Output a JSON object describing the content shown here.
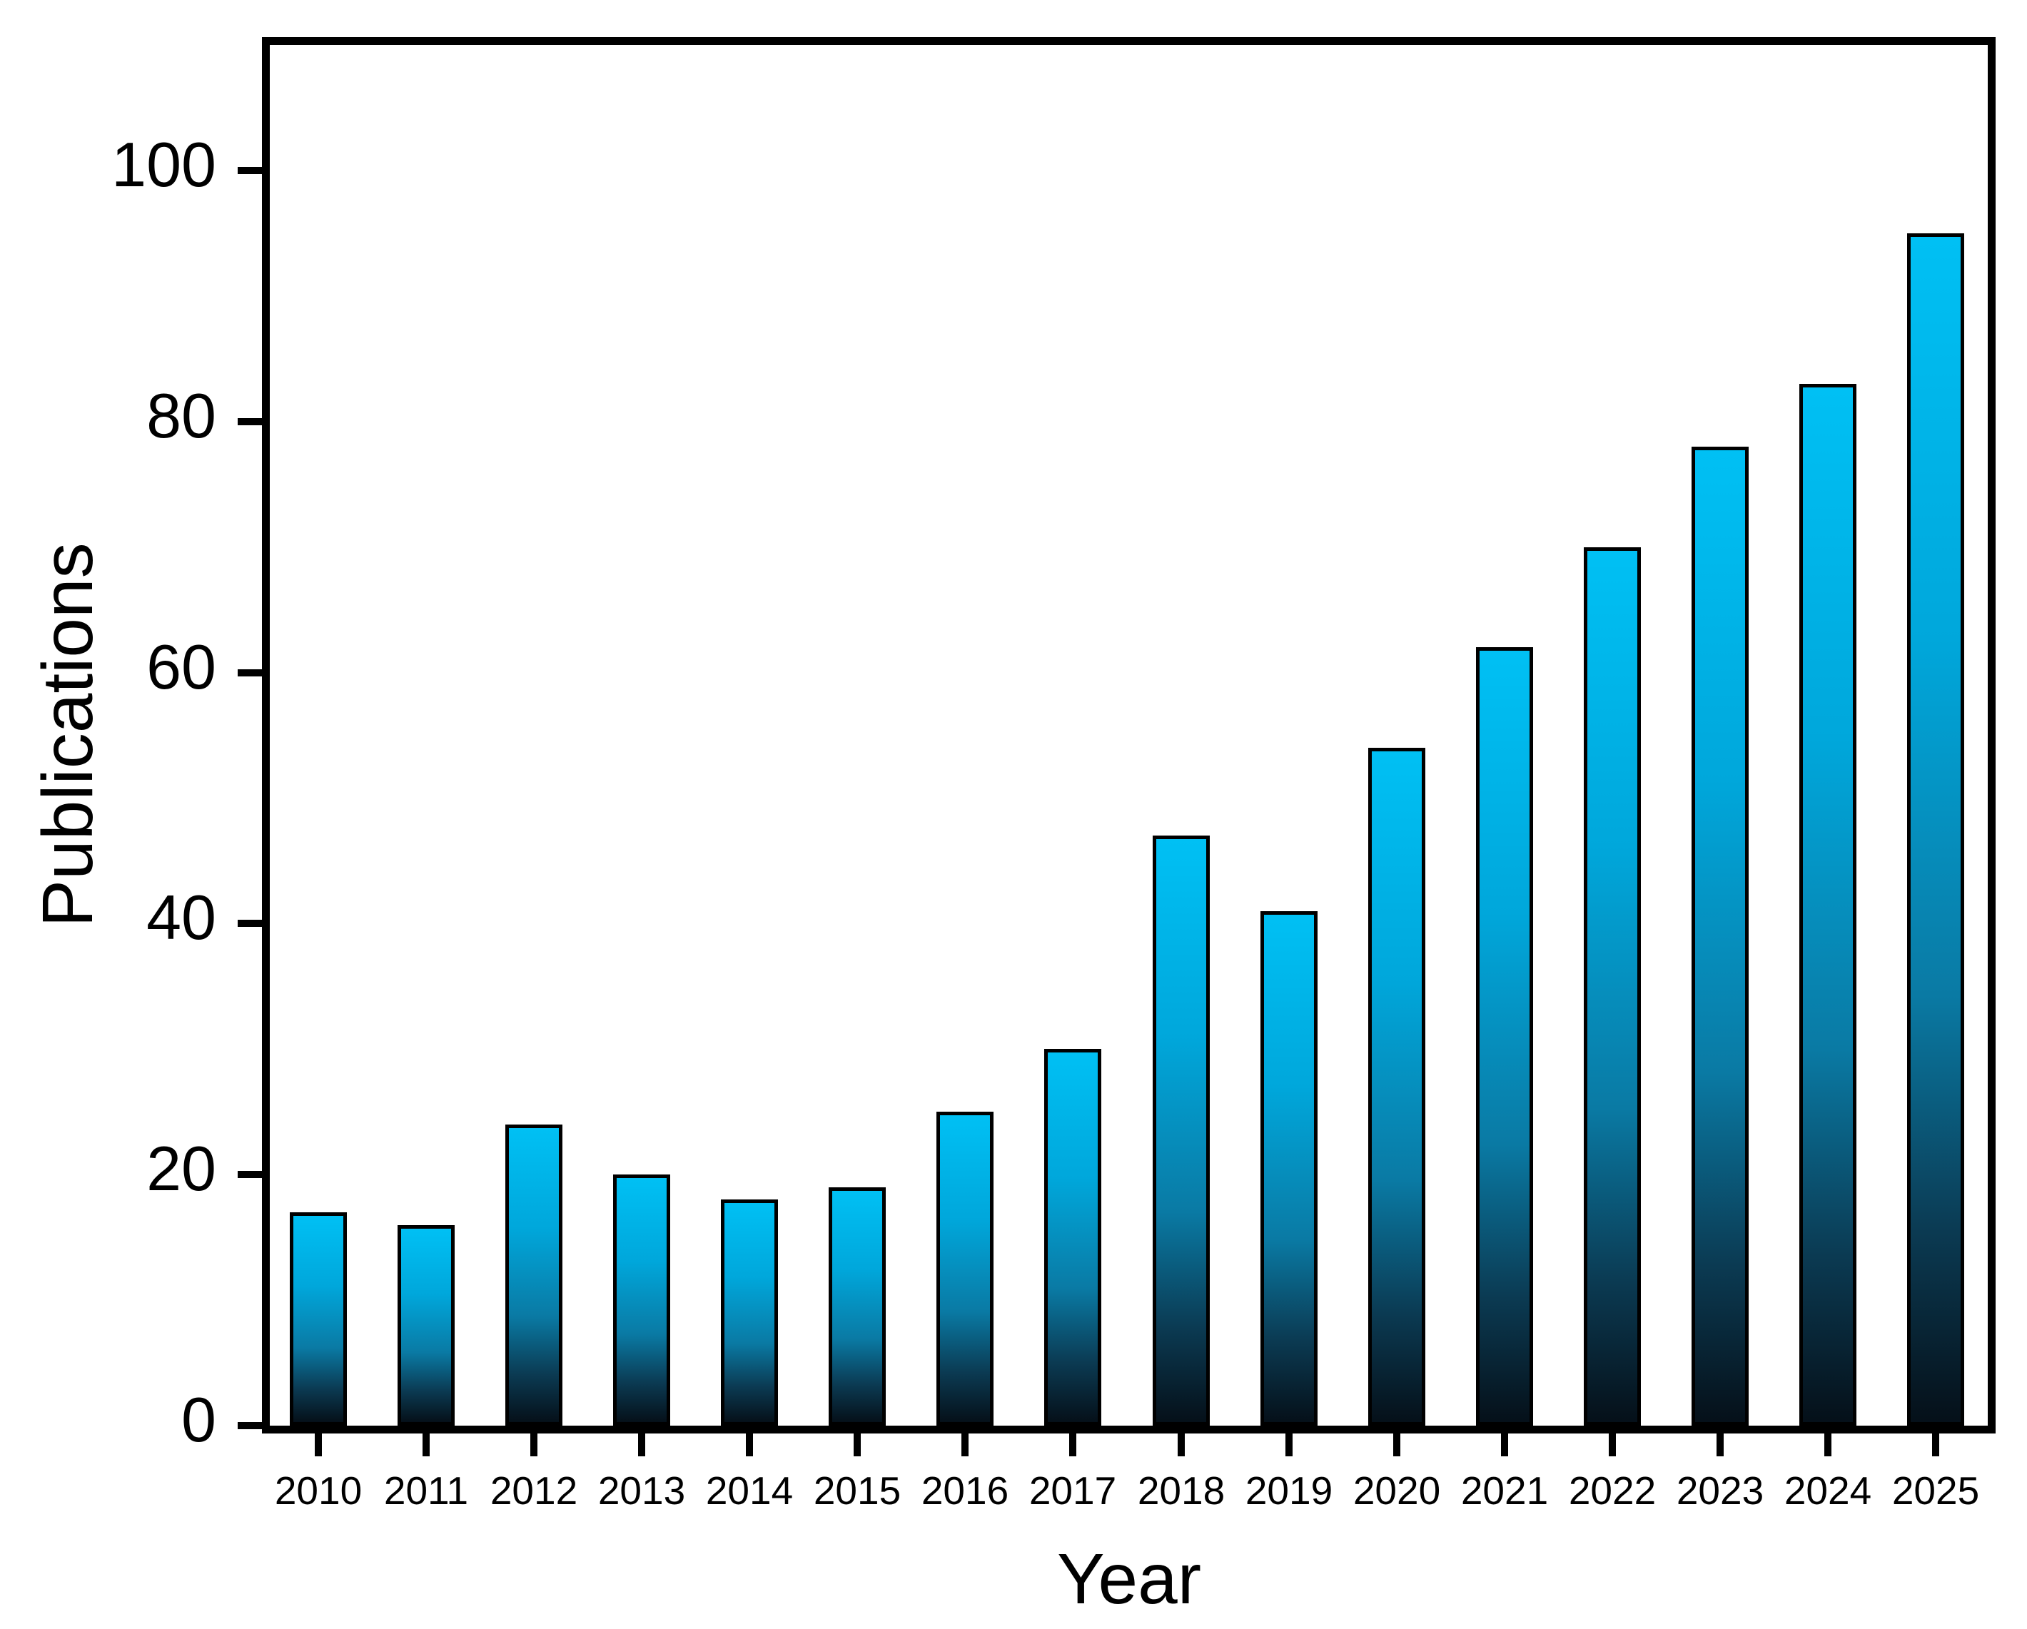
{
  "chart_data": {
    "type": "bar",
    "xlabel": "Year",
    "ylabel": "Publications",
    "categories": [
      "2010",
      "2011",
      "2012",
      "2013",
      "2014",
      "2015",
      "2016",
      "2017",
      "2018",
      "2019",
      "2020",
      "2021",
      "2022",
      "2023",
      "2024",
      "2025"
    ],
    "values": [
      17,
      16,
      24,
      20,
      18,
      19,
      25,
      30,
      47,
      41,
      54,
      62,
      70,
      78,
      83,
      95
    ],
    "yticks": [
      0,
      20,
      40,
      60,
      80,
      100
    ],
    "ylim": [
      0,
      110
    ],
    "grid": false,
    "legend": "none",
    "colors": {
      "axis": "#000000",
      "background": "#FFFFFF",
      "bar_outline": "#000000",
      "bar_gradient_top": "#00C0F4",
      "bar_gradient_upper_mid": "#00A7DB",
      "bar_gradient_mid": "#0A7AA4",
      "bar_gradient_lower_mid": "#0B3A52",
      "bar_gradient_bottom": "#051019"
    }
  }
}
